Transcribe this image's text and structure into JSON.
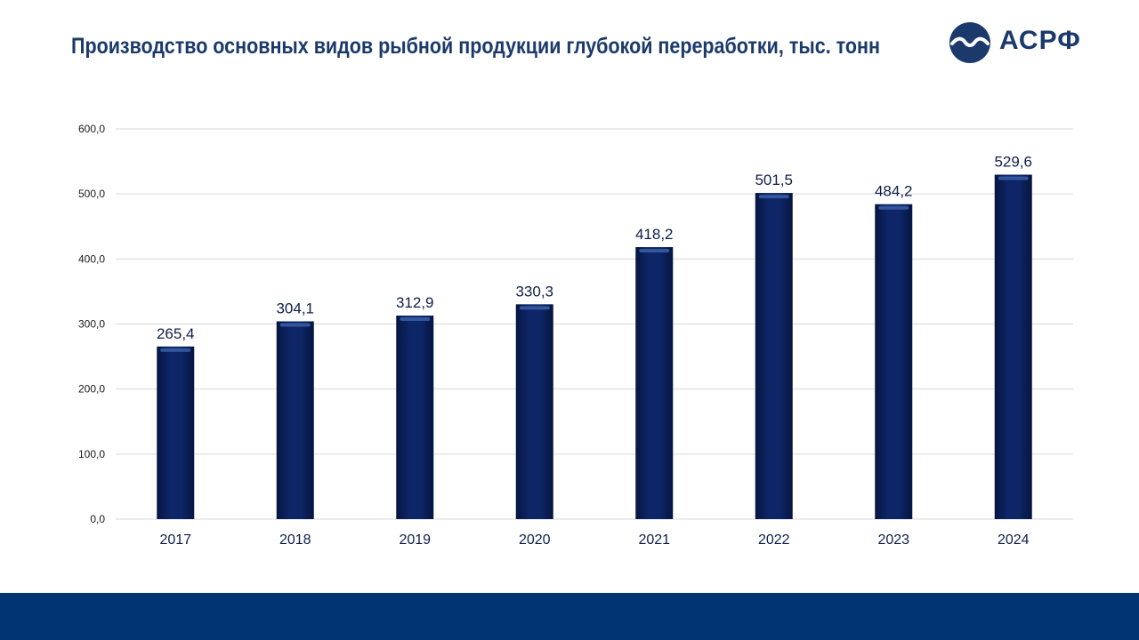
{
  "header": {
    "title": "Производство основных видов рыбной продукции глубокой переработки, тыс. тонн",
    "logo_text": "АСРФ",
    "logo_icon": "wave-circle-icon"
  },
  "colors": {
    "title": "#1b3a6b",
    "bar": "#0b2060",
    "bar_highlight": "#3a5fa8",
    "footer": "#003473",
    "grid": "#d9d9d9"
  },
  "chart_data": {
    "type": "bar",
    "title": "Производство основных видов рыбной продукции глубокой переработки, тыс. тонн",
    "categories": [
      "2017",
      "2018",
      "2019",
      "2020",
      "2021",
      "2022",
      "2023",
      "2024"
    ],
    "values": [
      265.4,
      304.1,
      312.9,
      330.3,
      418.2,
      501.5,
      484.2,
      529.6
    ],
    "data_labels": [
      "265,4",
      "304,1",
      "312,9",
      "330,3",
      "418,2",
      "501,5",
      "484,2",
      "529,6"
    ],
    "ylim": [
      0,
      600
    ],
    "yticks": [
      0,
      100,
      200,
      300,
      400,
      500,
      600
    ],
    "ytick_labels": [
      "0,0",
      "100,0",
      "200,0",
      "300,0",
      "400,0",
      "500,0",
      "600,0"
    ],
    "grid": true,
    "legend": "none",
    "xlabel": "",
    "ylabel": ""
  }
}
